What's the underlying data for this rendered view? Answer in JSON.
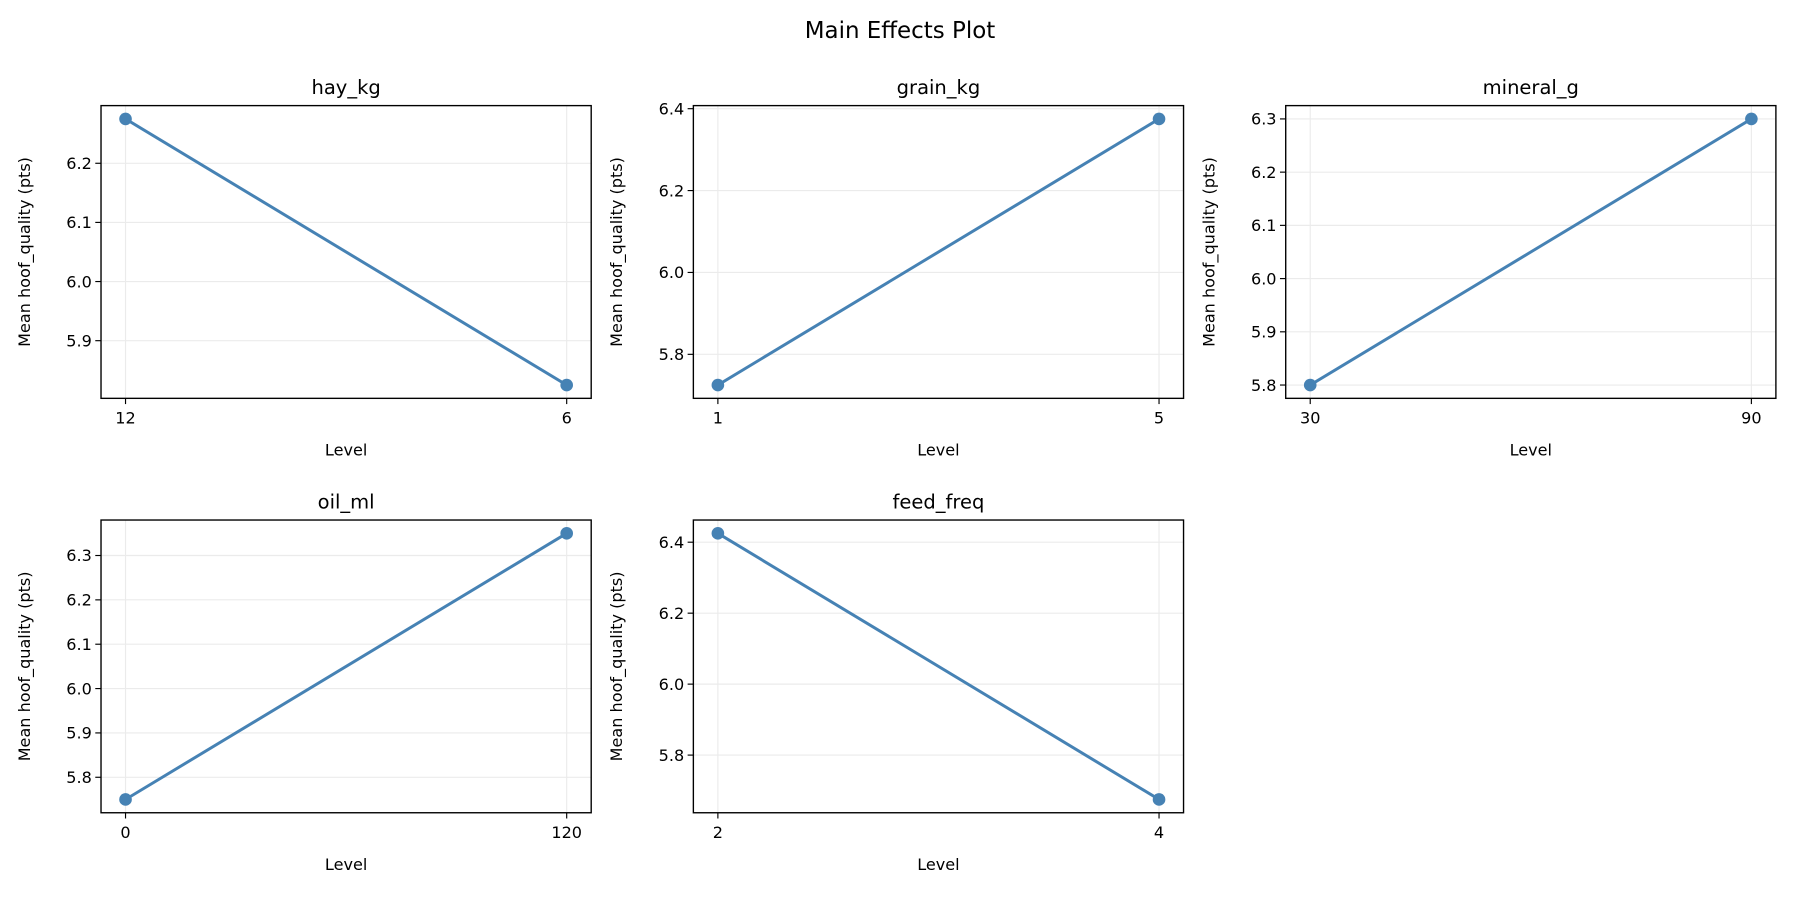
{
  "chart_data": {
    "title": "Main Effects Plot",
    "line_color": "#4682b4",
    "grid": true,
    "panels": [
      {
        "type": "line",
        "title": "hay_kg",
        "xlabel": "Level",
        "ylabel": "Mean hoof_quality (pts)",
        "categories": [
          "12",
          "6"
        ],
        "values": [
          6.275,
          5.825
        ],
        "ylim": [
          5.8025,
          6.2975
        ],
        "yticks": [
          5.9,
          6.0,
          6.1,
          6.2
        ]
      },
      {
        "type": "line",
        "title": "grain_kg",
        "xlabel": "Level",
        "ylabel": "Mean hoof_quality (pts)",
        "categories": [
          "1",
          "5"
        ],
        "values": [
          5.725,
          6.375
        ],
        "ylim": [
          5.6925,
          6.4075
        ],
        "yticks": [
          5.8,
          6.0,
          6.2,
          6.4
        ]
      },
      {
        "type": "line",
        "title": "mineral_g",
        "xlabel": "Level",
        "ylabel": "Mean hoof_quality (pts)",
        "categories": [
          "30",
          "90"
        ],
        "values": [
          5.8,
          6.3
        ],
        "ylim": [
          5.775,
          6.325
        ],
        "yticks": [
          5.8,
          5.9,
          6.0,
          6.1,
          6.2,
          6.3
        ]
      },
      {
        "type": "line",
        "title": "oil_ml",
        "xlabel": "Level",
        "ylabel": "Mean hoof_quality (pts)",
        "categories": [
          "0",
          "120"
        ],
        "values": [
          5.75,
          6.35
        ],
        "ylim": [
          5.72,
          6.38
        ],
        "yticks": [
          5.8,
          5.9,
          6.0,
          6.1,
          6.2,
          6.3
        ]
      },
      {
        "type": "line",
        "title": "feed_freq",
        "xlabel": "Level",
        "ylabel": "Mean hoof_quality (pts)",
        "categories": [
          "2",
          "4"
        ],
        "values": [
          6.425,
          5.675
        ],
        "ylim": [
          5.6375,
          6.4625
        ],
        "yticks": [
          5.8,
          6.0,
          6.2,
          6.4
        ]
      }
    ]
  }
}
